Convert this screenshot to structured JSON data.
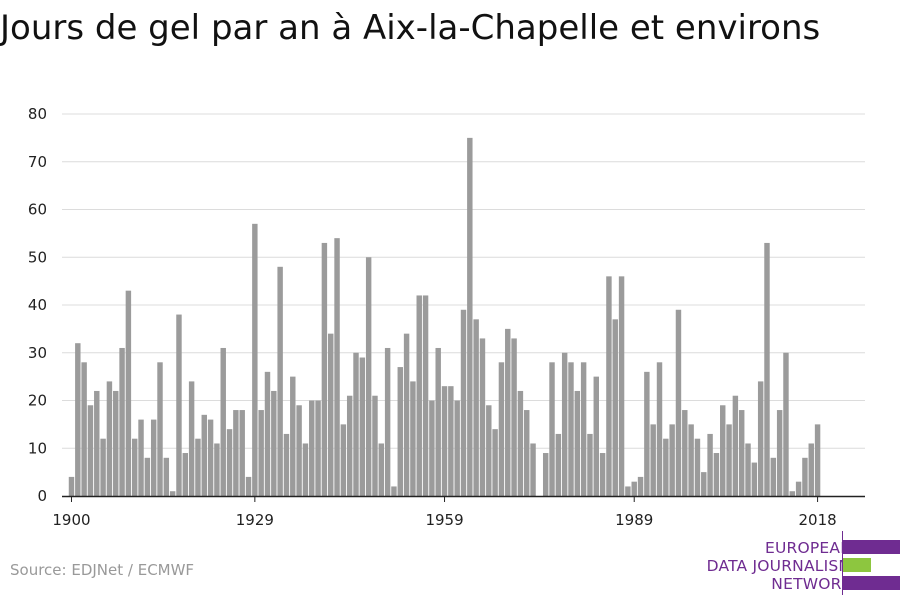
{
  "title": "Jours de gel par an à Aix-la-Chapelle et environs",
  "source": "Source: EDJNet / ECMWF",
  "logo": {
    "line1": "EUROPEAN",
    "line2": "DATA JOURNALISM",
    "line3": "NETWORK",
    "colors": {
      "purple": "#6f2c91",
      "green": "#8dc63f"
    }
  },
  "colors": {
    "bar": "#9b9b9b",
    "grid": "#dcdcdc",
    "axis": "#222222"
  },
  "chart_data": {
    "type": "bar",
    "title": "Jours de gel par an à Aix-la-Chapelle et environs",
    "xlabel": "",
    "ylabel": "",
    "x_start": 1900,
    "xlim": [
      1898.5,
      2025.5
    ],
    "ylim": [
      0,
      80
    ],
    "yticks": [
      0,
      10,
      20,
      30,
      40,
      50,
      60,
      70,
      80
    ],
    "xticks": [
      1900,
      1929,
      1959,
      1989,
      2018
    ],
    "grid": "horizontal",
    "values": [
      4,
      32,
      28,
      19,
      22,
      12,
      24,
      22,
      31,
      43,
      12,
      16,
      8,
      16,
      28,
      8,
      1,
      38,
      9,
      24,
      12,
      17,
      16,
      11,
      31,
      14,
      18,
      18,
      4,
      57,
      18,
      26,
      22,
      48,
      13,
      25,
      19,
      11,
      20,
      20,
      53,
      34,
      54,
      15,
      21,
      30,
      29,
      50,
      21,
      11,
      31,
      2,
      27,
      34,
      24,
      42,
      42,
      20,
      31,
      23,
      23,
      20,
      39,
      75,
      37,
      33,
      19,
      14,
      28,
      35,
      33,
      22,
      18,
      11,
      0,
      9,
      28,
      13,
      30,
      28,
      22,
      28,
      13,
      25,
      9,
      46,
      37,
      46,
      2,
      3,
      4,
      26,
      15,
      28,
      12,
      15,
      39,
      18,
      15,
      12,
      5,
      13,
      9,
      19,
      15,
      21,
      18,
      11,
      7,
      24,
      53,
      8,
      18,
      30,
      1,
      3,
      8,
      11,
      15
    ]
  }
}
